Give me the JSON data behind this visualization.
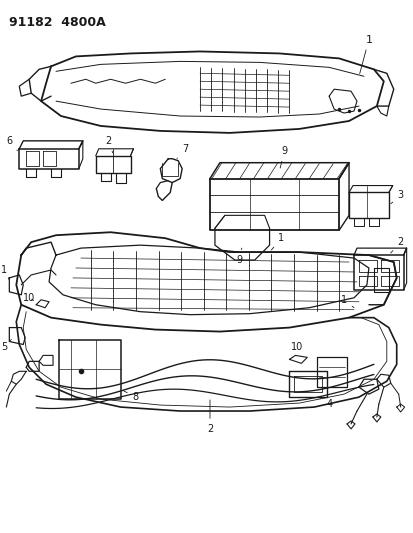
{
  "title": "91182  4800A",
  "bg_color": "#ffffff",
  "line_color": "#1a1a1a",
  "fig_width": 4.14,
  "fig_height": 5.33,
  "dpi": 100
}
